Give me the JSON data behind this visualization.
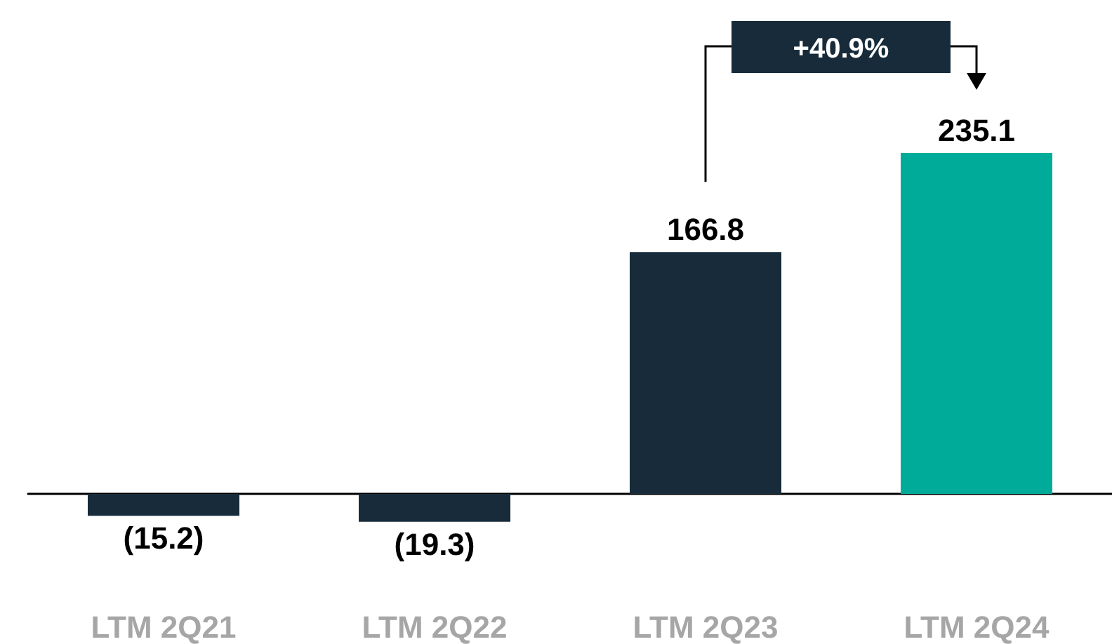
{
  "chart_data": {
    "type": "bar",
    "categories": [
      "LTM 2Q21",
      "LTM 2Q22",
      "LTM 2Q23",
      "LTM 2Q24"
    ],
    "values": [
      -15.2,
      -19.3,
      166.8,
      235.1
    ],
    "colors": [
      "#172b3a",
      "#172b3a",
      "#172b3a",
      "#00ab9a"
    ],
    "value_labels": [
      "(15.2)",
      "(19.3)",
      "166.8",
      "235.1"
    ],
    "annotations": [
      "+40.9%"
    ]
  }
}
